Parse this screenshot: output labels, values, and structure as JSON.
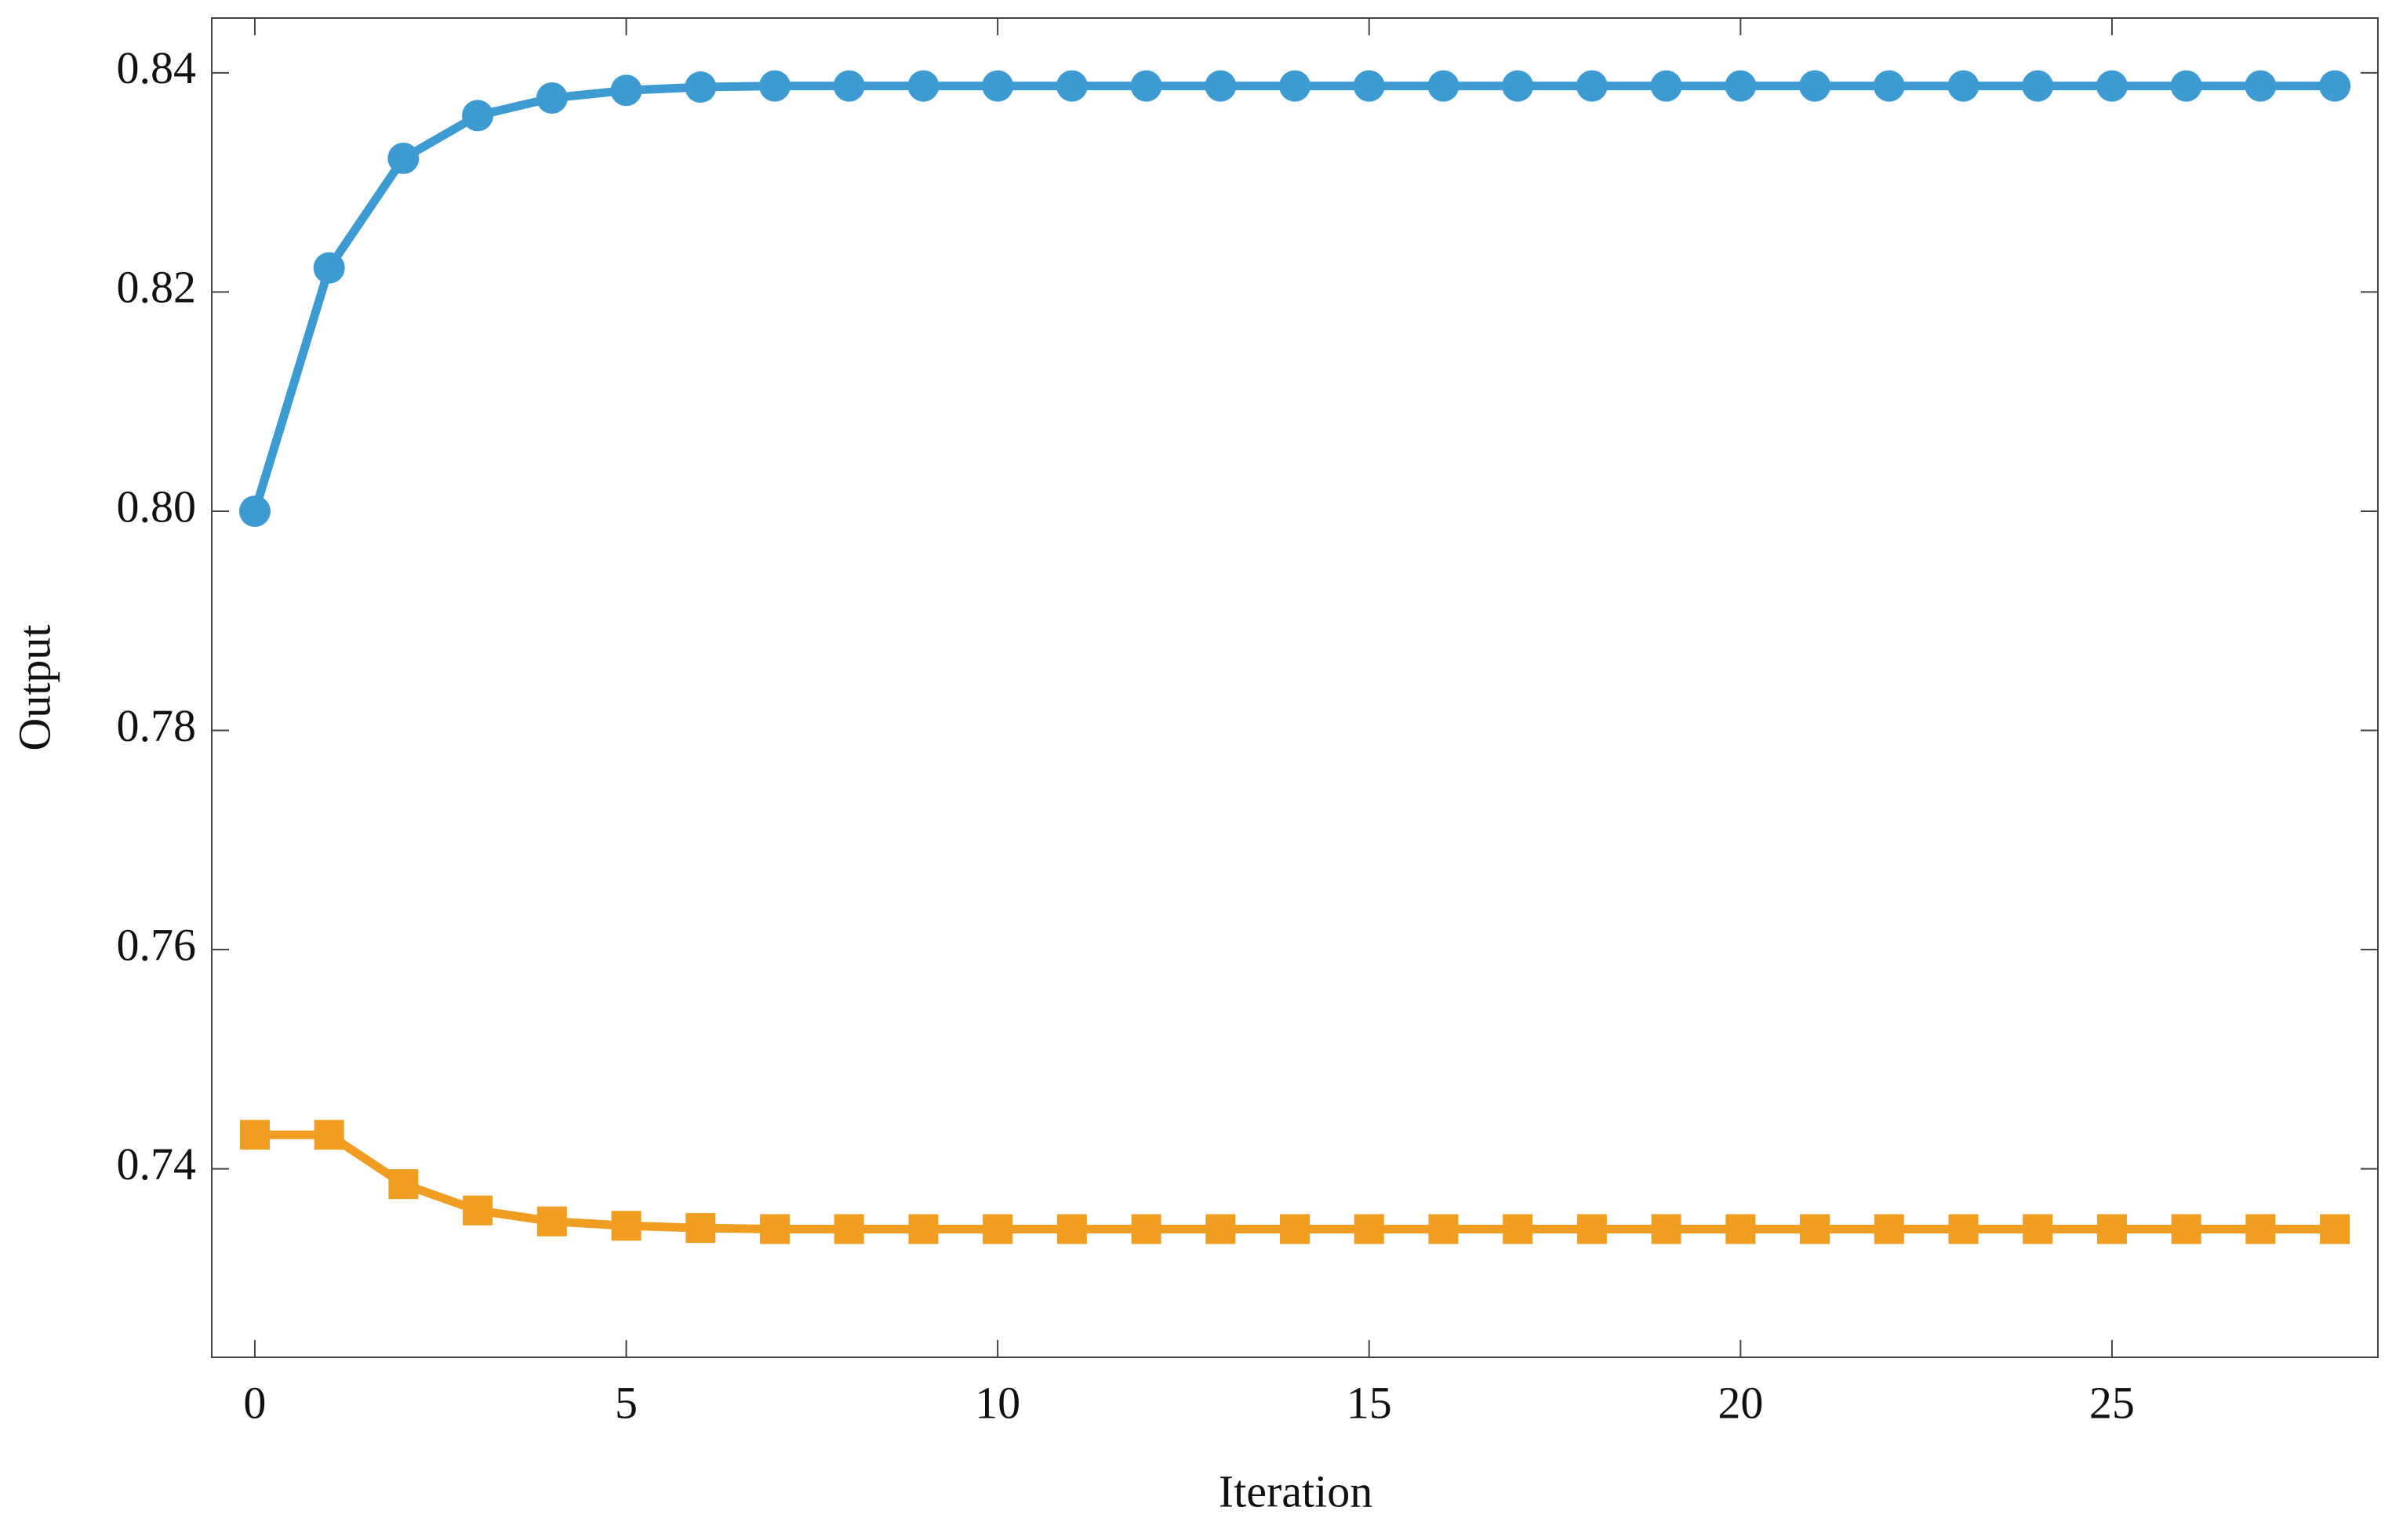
{
  "chart_data": {
    "type": "line",
    "x_label": "Iteration",
    "y_label": "Output",
    "x": [
      0,
      1,
      2,
      3,
      4,
      5,
      6,
      7,
      8,
      9,
      10,
      11,
      12,
      13,
      14,
      15,
      16,
      17,
      18,
      19,
      20,
      21,
      22,
      23,
      24,
      25,
      26,
      27,
      28
    ],
    "series": [
      {
        "color": "#3d9bd2",
        "marker": "circle",
        "values": [
          0.8,
          0.8222,
          0.8322,
          0.8361,
          0.8377,
          0.8384,
          0.8387,
          0.8388,
          0.8388,
          0.8388,
          0.8388,
          0.8388,
          0.8388,
          0.8388,
          0.8388,
          0.8388,
          0.8388,
          0.8388,
          0.8388,
          0.8388,
          0.8388,
          0.8388,
          0.8388,
          0.8388,
          0.8388,
          0.8388,
          0.8388,
          0.8388,
          0.8388
        ]
      },
      {
        "color": "#f09e22",
        "marker": "square",
        "values": [
          0.7431,
          0.7431,
          0.7386,
          0.7362,
          0.7352,
          0.7348,
          0.7346,
          0.7345,
          0.7345,
          0.7345,
          0.7345,
          0.7345,
          0.7345,
          0.7345,
          0.7345,
          0.7345,
          0.7345,
          0.7345,
          0.7345,
          0.7345,
          0.7345,
          0.7345,
          0.7345,
          0.7345,
          0.7345,
          0.7345,
          0.7345,
          0.7345,
          0.7345
        ]
      }
    ],
    "xlim": [
      -0.58,
      28.58
    ],
    "ylim": [
      0.7228,
      0.845
    ],
    "xticks": [
      0,
      5,
      10,
      15,
      20,
      25
    ],
    "yticks": [
      {
        "value": 0.74,
        "label": "0.74"
      },
      {
        "value": 0.76,
        "label": "0.76"
      },
      {
        "value": 0.78,
        "label": "0.78"
      },
      {
        "value": 0.8,
        "label": "0.80"
      },
      {
        "value": 0.82,
        "label": "0.82"
      },
      {
        "value": 0.84,
        "label": "0.84"
      }
    ],
    "grid": false
  }
}
